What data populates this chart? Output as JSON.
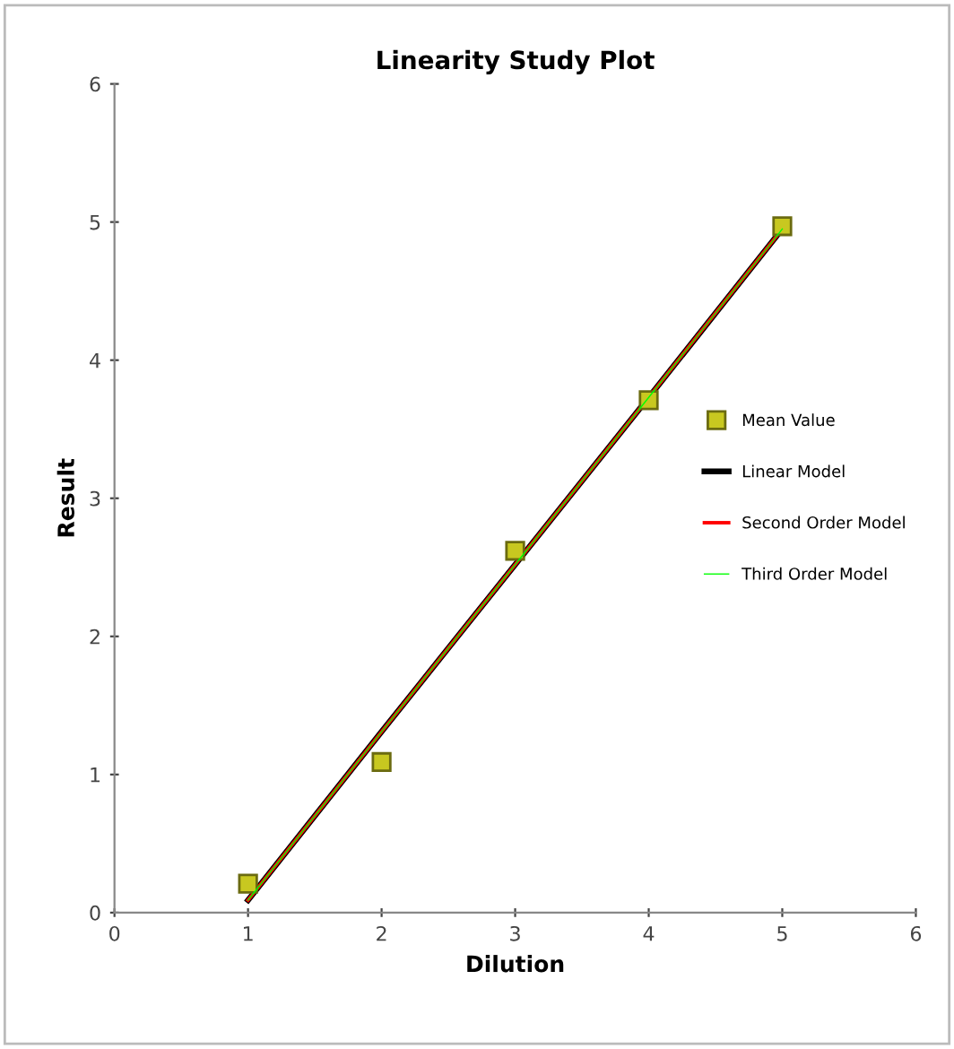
{
  "chart_data": {
    "type": "line",
    "title": "Linearity Study Plot",
    "xlabel": "Dilution",
    "ylabel": "Result",
    "xlim": [
      0,
      6
    ],
    "xticks": [
      0,
      1,
      2,
      3,
      4,
      5,
      6
    ],
    "ylim": [
      0,
      6
    ],
    "yticks": [
      0,
      1,
      2,
      3,
      4,
      5,
      6
    ],
    "grid": false,
    "legend": "right",
    "series": [
      {
        "name": "Mean Value",
        "type": "scatter",
        "marker": "square",
        "color": "#c8c820",
        "x": [
          1,
          2,
          3,
          4,
          5
        ],
        "values": [
          0.21,
          1.09,
          2.62,
          3.71,
          4.97
        ]
      },
      {
        "name": "Linear Model",
        "color": "#000000",
        "x": [
          1,
          2,
          3,
          4,
          5
        ],
        "values": [
          0.09,
          1.31,
          2.52,
          3.73,
          4.95
        ]
      },
      {
        "name": "Second Order Model",
        "color": "#ff0000",
        "x": [
          1,
          2,
          3,
          4,
          5
        ],
        "values": [
          0.09,
          1.31,
          2.52,
          3.73,
          4.95
        ]
      },
      {
        "name": "Third Order Model",
        "color": "#00ff00",
        "x": [
          1,
          2,
          3,
          4,
          5
        ],
        "values": [
          0.09,
          1.31,
          2.52,
          3.73,
          4.95
        ]
      }
    ]
  }
}
